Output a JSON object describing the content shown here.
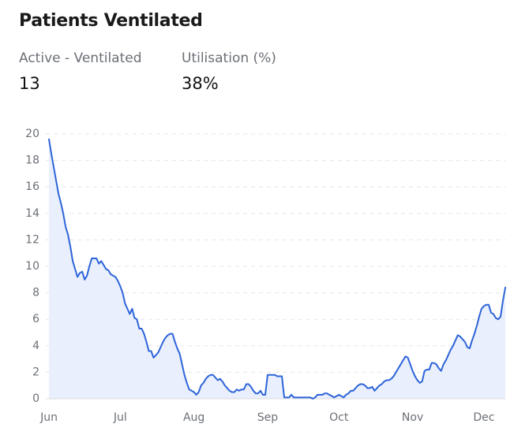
{
  "title": "Patients Ventilated",
  "stats": [
    {
      "label": "Active - Ventilated",
      "value": "13"
    },
    {
      "label": "Utilisation (%)",
      "value": "38%"
    }
  ],
  "chart_data": {
    "type": "line",
    "color": "#2d64d9",
    "fill": "#e9effc",
    "grid": true,
    "ylim": [
      0,
      20
    ],
    "yticks": [
      0,
      2,
      4,
      6,
      8,
      10,
      12,
      14,
      16,
      18,
      20
    ],
    "categories": [
      "Jun",
      null,
      null,
      null,
      null,
      null,
      null,
      null,
      null,
      null,
      null,
      null,
      null,
      null,
      null,
      null,
      null,
      null,
      null,
      null,
      null,
      null,
      null,
      null,
      null,
      null,
      null,
      null,
      null,
      null,
      "Jul",
      null,
      null,
      null,
      null,
      null,
      null,
      null,
      null,
      null,
      null,
      null,
      null,
      null,
      null,
      null,
      null,
      null,
      null,
      null,
      null,
      null,
      null,
      null,
      null,
      null,
      null,
      null,
      null,
      null,
      null,
      "Aug",
      null,
      null,
      null,
      null,
      null,
      null,
      null,
      null,
      null,
      null,
      null,
      null,
      null,
      null,
      null,
      null,
      null,
      null,
      null,
      null,
      null,
      null,
      null,
      null,
      null,
      null,
      null,
      null,
      null,
      null,
      "Sep",
      null,
      null,
      null,
      null,
      null,
      null,
      null,
      null,
      null,
      null,
      null,
      null,
      null,
      null,
      null,
      null,
      null,
      null,
      null,
      null,
      null,
      null,
      null,
      null,
      null,
      null,
      null,
      null,
      null,
      "Oct",
      null,
      null,
      null,
      null,
      null,
      null,
      null,
      null,
      null,
      null,
      null,
      null,
      null,
      null,
      null,
      null,
      null,
      null,
      null,
      null,
      null,
      null,
      null,
      null,
      null,
      null,
      null,
      null,
      null,
      null,
      "Nov",
      null,
      null,
      null,
      null,
      null,
      null,
      null,
      null,
      null,
      null,
      null,
      null,
      null,
      null,
      null,
      null,
      null,
      null,
      null,
      null,
      null,
      null,
      null,
      null,
      null,
      null,
      null,
      null,
      null,
      "Dec",
      null,
      null,
      null,
      null,
      null,
      null,
      null,
      null,
      null
    ],
    "values": [
      19.6,
      18.5,
      17.5,
      16.5,
      15.5,
      14.8,
      14,
      13,
      12.4,
      11.5,
      10.4,
      9.8,
      9.2,
      9.5,
      9.6,
      9.0,
      9.3,
      10,
      10.6,
      10.6,
      10.6,
      10.2,
      10.4,
      10.1,
      9.8,
      9.7,
      9.4,
      9.3,
      9.2,
      8.9,
      8.5,
      8.0,
      7.2,
      6.8,
      6.4,
      6.8,
      6.1,
      6.0,
      5.3,
      5.3,
      4.9,
      4.3,
      3.6,
      3.6,
      3.1,
      3.3,
      3.5,
      3.9,
      4.3,
      4.6,
      4.8,
      4.9,
      4.9,
      4.3,
      3.8,
      3.4,
      2.6,
      1.8,
      1.2,
      0.7,
      0.6,
      0.5,
      0.3,
      0.5,
      1.0,
      1.2,
      1.5,
      1.7,
      1.8,
      1.8,
      1.6,
      1.4,
      1.5,
      1.3,
      1.0,
      0.8,
      0.6,
      0.5,
      0.5,
      0.7,
      0.6,
      0.7,
      0.7,
      1.1,
      1.1,
      0.9,
      0.6,
      0.4,
      0.4,
      0.6,
      0.3,
      0.3,
      1.8,
      1.8,
      1.8,
      1.8,
      1.7,
      1.7,
      1.7,
      0.1,
      0.1,
      0.1,
      0.3,
      0.1,
      0.1,
      0.1,
      0.1,
      0.1,
      0.1,
      0.1,
      0.1,
      0,
      0.1,
      0.3,
      0.3,
      0.3,
      0.4,
      0.4,
      0.3,
      0.2,
      0.1,
      0.2,
      0.3,
      0.2,
      0.1,
      0.3,
      0.4,
      0.6,
      0.6,
      0.8,
      1.0,
      1.1,
      1.1,
      1.0,
      0.8,
      0.8,
      0.9,
      0.6,
      0.8,
      1.0,
      1.1,
      1.3,
      1.4,
      1.4,
      1.5,
      1.7,
      2.0,
      2.3,
      2.6,
      2.9,
      3.2,
      3.1,
      2.6,
      2.1,
      1.7,
      1.4,
      1.2,
      1.3,
      2.1,
      2.2,
      2.2,
      2.7,
      2.7,
      2.6,
      2.3,
      2.1,
      2.6,
      2.9,
      3.3,
      3.7,
      4.0,
      4.4,
      4.8,
      4.7,
      4.5,
      4.3,
      3.9,
      3.8,
      4.4,
      4.9,
      5.5,
      6.2,
      6.8,
      7.0,
      7.1,
      7.1,
      6.5,
      6.4,
      6.1,
      6.0,
      6.2,
      7.4,
      8.4
    ]
  }
}
